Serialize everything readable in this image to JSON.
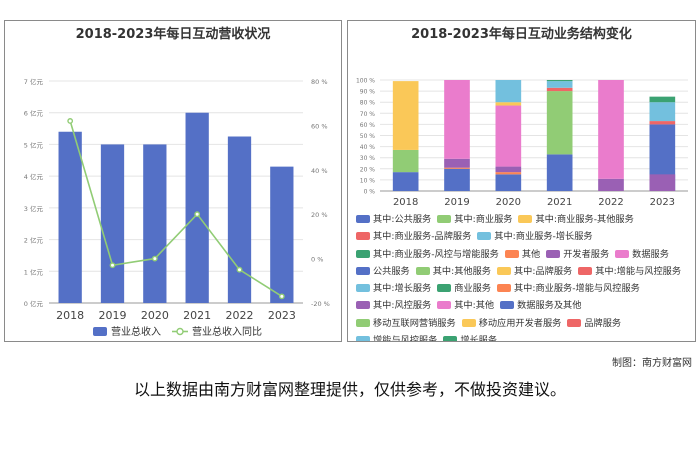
{
  "credit": "制图：南方财富网",
  "disclaimer": "以上数据由南方财富网整理提供，仅供参考，不做投资建议。",
  "watermark": "南方财富网",
  "colors": {
    "bar": "#5470c6",
    "line": "#91cc75"
  },
  "chart_data": [
    {
      "type": "bar",
      "title": "2018-2023年每日互动营收状况",
      "categories": [
        "2018",
        "2019",
        "2020",
        "2021",
        "2022",
        "2023"
      ],
      "y_left": {
        "range": [
          0,
          7
        ],
        "ticks": [
          "0 亿元",
          "1 亿元",
          "2 亿元",
          "3 亿元",
          "4 亿元",
          "5 亿元",
          "6 亿元",
          "7 亿元"
        ]
      },
      "y_right": {
        "range": [
          -20,
          80
        ],
        "ticks": [
          "-20 %",
          "0 %",
          "20 %",
          "40 %",
          "60 %",
          "80 %"
        ]
      },
      "series": [
        {
          "name": "营业总收入",
          "type": "bar",
          "axis": "left",
          "values": [
            5.4,
            5.0,
            5.0,
            6.0,
            5.25,
            4.3
          ]
        },
        {
          "name": "营业总收入同比",
          "type": "line",
          "axis": "right",
          "values": [
            62,
            -3,
            0,
            20,
            -5,
            -17
          ]
        }
      ],
      "legend": "bottom",
      "grid": true
    },
    {
      "type": "bar",
      "stacked": true,
      "title": "2018-2023年每日互动业务结构变化",
      "categories": [
        "2018",
        "2019",
        "2020",
        "2021",
        "2022",
        "2023"
      ],
      "y": {
        "range": [
          0,
          100
        ],
        "ticks": [
          "0 %",
          "10 %",
          "20 %",
          "30 %",
          "40 %",
          "50 %",
          "60 %",
          "70 %",
          "80 %",
          "90 %",
          "100 %"
        ]
      },
      "series": [
        {
          "name": "其中:公共服务",
          "color": "#5470c6",
          "values": [
            17,
            20,
            15,
            33,
            0,
            0
          ]
        },
        {
          "name": "其中:商业服务",
          "color": "#91cc75",
          "values": [
            20,
            0,
            0,
            57,
            0,
            0
          ]
        },
        {
          "name": "其中:商业服务-其他服务",
          "color": "#fac858",
          "values": [
            62,
            0,
            0,
            0,
            0,
            0
          ]
        },
        {
          "name": "其中:商业服务-品牌服务",
          "color": "#ee6666",
          "values": [
            0,
            0,
            0,
            3,
            0,
            0
          ]
        },
        {
          "name": "其中:商业服务-增长服务",
          "color": "#73c0de",
          "values": [
            0,
            0,
            0,
            6,
            0,
            0
          ]
        },
        {
          "name": "其中:商业服务-风控与增能服务",
          "color": "#3ba272",
          "values": [
            0,
            0,
            0,
            0,
            0,
            0
          ]
        },
        {
          "name": "其他",
          "color": "#fc8452",
          "values": [
            0,
            1,
            0,
            0,
            0,
            0
          ]
        },
        {
          "name": "开发者服务",
          "color": "#9a60b4",
          "values": [
            0,
            8,
            0,
            0,
            0,
            0
          ]
        },
        {
          "name": "数据服务",
          "color": "#ea7ccc",
          "values": [
            0,
            71,
            0,
            0,
            0,
            0
          ]
        },
        {
          "name": "公共服务",
          "color": "#5470c6",
          "values": [
            0,
            0,
            0,
            0,
            0,
            0
          ]
        },
        {
          "name": "其中:其他服务",
          "color": "#91cc75",
          "values": [
            0,
            0,
            0,
            0,
            0,
            0
          ]
        },
        {
          "name": "其中:品牌服务",
          "color": "#fac858",
          "values": [
            0,
            0,
            0,
            0,
            0,
            0
          ]
        },
        {
          "name": "其中:增能与风控服务",
          "color": "#ee6666",
          "values": [
            0,
            0,
            0,
            0,
            0,
            0
          ]
        },
        {
          "name": "其中:增长服务",
          "color": "#73c0de",
          "values": [
            0,
            0,
            0,
            0,
            0,
            0
          ]
        },
        {
          "name": "商业服务",
          "color": "#3ba272",
          "values": [
            0,
            0,
            0,
            0,
            0,
            0
          ]
        },
        {
          "name": "其中:商业服务-增能与风控服务",
          "color": "#fc8452",
          "values": [
            0,
            0,
            2,
            0,
            0,
            0
          ]
        },
        {
          "name": "其中:风控服务",
          "color": "#9a60b4",
          "values": [
            0,
            0,
            5,
            0,
            11,
            0
          ]
        },
        {
          "name": "其中:其他",
          "color": "#ea7ccc",
          "values": [
            0,
            0,
            55,
            0,
            89,
            0
          ]
        },
        {
          "name": "数据服务及其他",
          "color": "#5470c6",
          "values": [
            0,
            0,
            0,
            0,
            0,
            60
          ]
        },
        {
          "name": "移动互联网营销服务",
          "color": "#91cc75",
          "values": [
            0,
            0,
            0,
            0,
            0,
            0
          ]
        },
        {
          "name": "移动应用开发者服务",
          "color": "#fac858",
          "values": [
            0,
            0,
            3,
            0,
            0,
            0
          ]
        },
        {
          "name": "品牌服务",
          "color": "#ee6666",
          "values": [
            0,
            0,
            0,
            0,
            0,
            3
          ]
        },
        {
          "name": "增能与风控服务",
          "color": "#73c0de",
          "values": [
            0,
            0,
            20,
            0,
            0,
            17
          ]
        },
        {
          "name": "增长服务",
          "color": "#3ba272",
          "values": [
            0,
            0,
            0,
            1,
            0,
            5
          ]
        }
      ],
      "extra_2023": [
        {
          "color": "#9a60b4",
          "value": 15
        }
      ],
      "legend": "bottom"
    }
  ]
}
